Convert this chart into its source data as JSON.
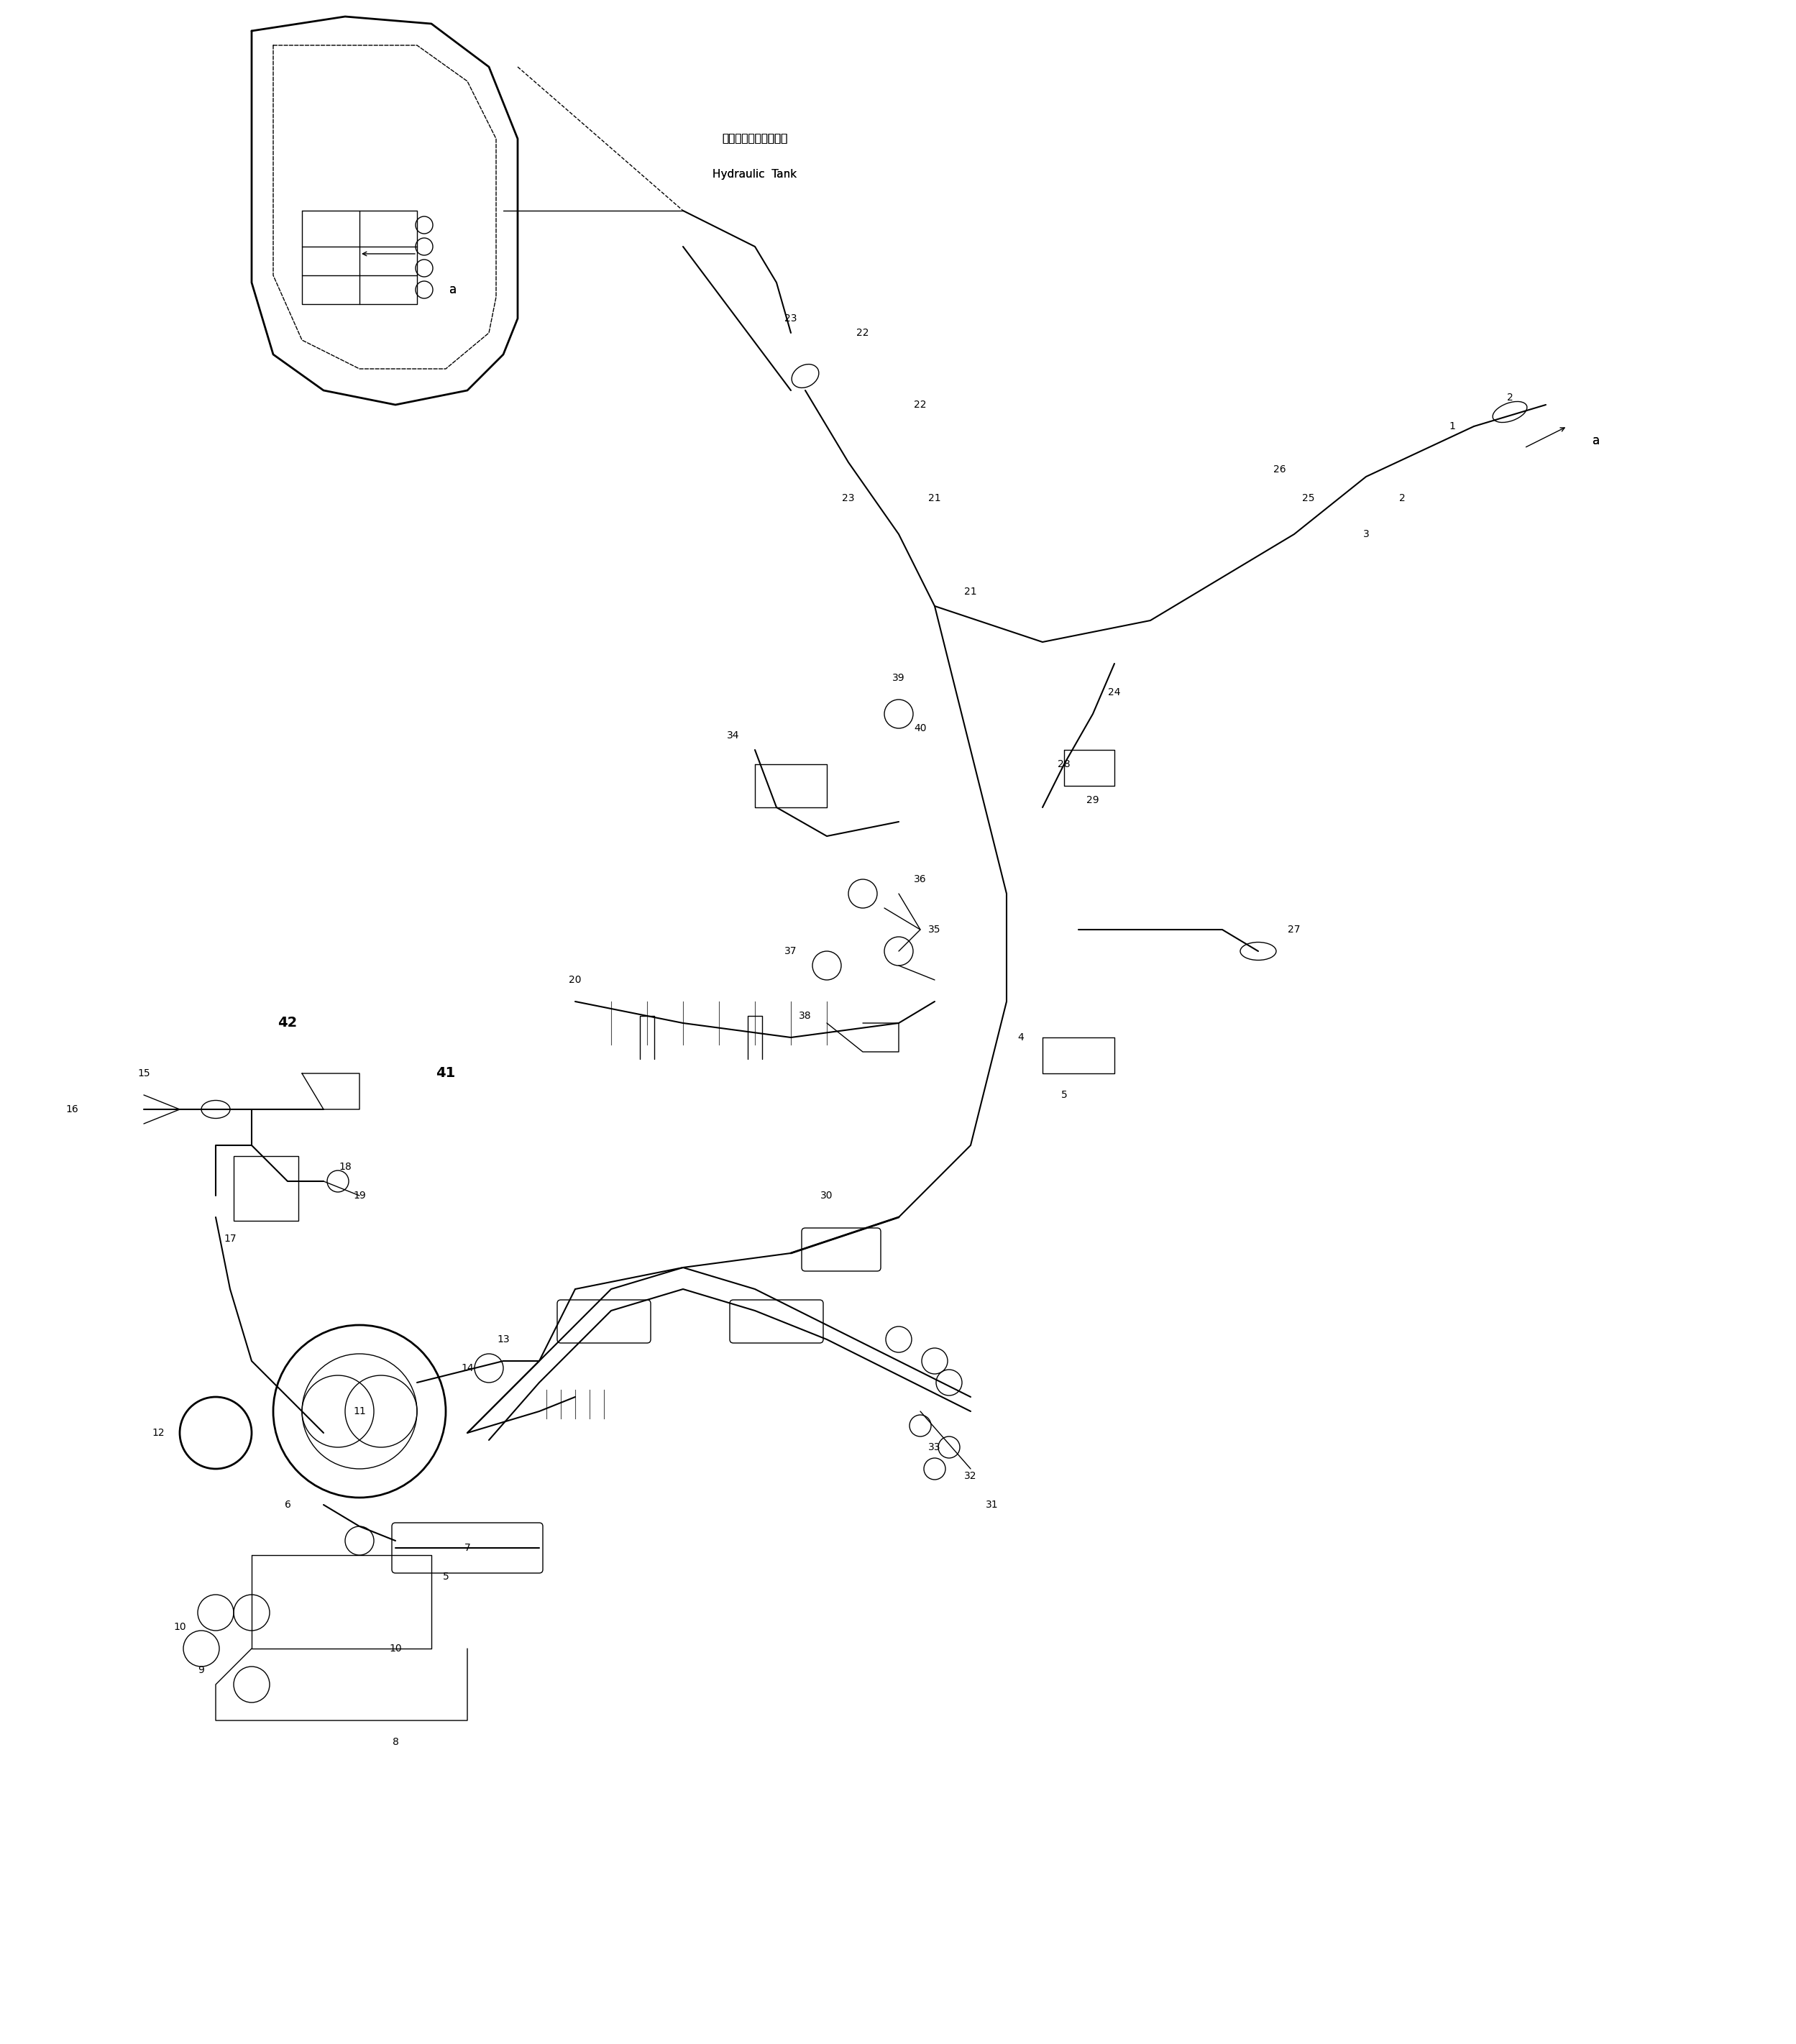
{
  "bg_color": "#ffffff",
  "line_color": "#000000",
  "fig_width": 24.98,
  "fig_height": 28.43,
  "hydraulic_tank_jp": "ハイドロリックタンク",
  "hydraulic_tank_en": "Hydraulic  Tank",
  "a_label": "a",
  "parts_positioned": [
    [
      "1",
      20.2,
      22.5,
      10,
      false
    ],
    [
      "2",
      21.0,
      22.9,
      10,
      false
    ],
    [
      "2",
      19.5,
      21.5,
      10,
      false
    ],
    [
      "3",
      19.0,
      21.0,
      10,
      false
    ],
    [
      "25",
      18.2,
      21.5,
      10,
      false
    ],
    [
      "26",
      17.8,
      21.9,
      10,
      false
    ],
    [
      "22",
      12.8,
      22.8,
      10,
      false
    ],
    [
      "23",
      11.8,
      21.5,
      10,
      false
    ],
    [
      "21",
      13.5,
      20.2,
      10,
      false
    ],
    [
      "24",
      15.5,
      18.8,
      10,
      false
    ],
    [
      "28",
      14.8,
      17.8,
      10,
      false
    ],
    [
      "29",
      15.2,
      17.3,
      10,
      false
    ],
    [
      "27",
      18.0,
      15.5,
      10,
      false
    ],
    [
      "4",
      14.2,
      14.0,
      10,
      false
    ],
    [
      "5",
      14.8,
      13.2,
      10,
      false
    ],
    [
      "34",
      10.2,
      18.2,
      10,
      false
    ],
    [
      "39",
      12.5,
      19.0,
      10,
      false
    ],
    [
      "40",
      12.8,
      18.3,
      10,
      false
    ],
    [
      "35",
      13.0,
      15.5,
      10,
      false
    ],
    [
      "36",
      12.8,
      16.2,
      10,
      false
    ],
    [
      "37",
      11.0,
      15.2,
      10,
      false
    ],
    [
      "38",
      11.2,
      14.3,
      10,
      false
    ],
    [
      "20",
      8.0,
      14.8,
      10,
      false
    ],
    [
      "41",
      6.2,
      13.5,
      14,
      true
    ],
    [
      "42",
      4.0,
      14.2,
      14,
      true
    ],
    [
      "15",
      2.0,
      13.5,
      10,
      false
    ],
    [
      "16",
      1.0,
      13.0,
      10,
      false
    ],
    [
      "17",
      3.2,
      11.2,
      10,
      false
    ],
    [
      "18",
      4.8,
      12.2,
      10,
      false
    ],
    [
      "19",
      5.0,
      11.8,
      10,
      false
    ],
    [
      "30",
      11.5,
      11.8,
      10,
      false
    ],
    [
      "31",
      13.8,
      7.5,
      10,
      false
    ],
    [
      "32",
      13.5,
      7.9,
      10,
      false
    ],
    [
      "33",
      13.0,
      8.3,
      10,
      false
    ],
    [
      "11",
      5.0,
      8.8,
      10,
      false
    ],
    [
      "12",
      2.2,
      8.5,
      10,
      false
    ],
    [
      "13",
      7.0,
      9.8,
      10,
      false
    ],
    [
      "14",
      6.5,
      9.4,
      10,
      false
    ],
    [
      "6",
      4.0,
      7.5,
      10,
      false
    ],
    [
      "7",
      6.5,
      6.9,
      10,
      false
    ],
    [
      "8",
      5.5,
      4.2,
      10,
      false
    ],
    [
      "9",
      2.8,
      5.2,
      10,
      false
    ],
    [
      "10",
      2.5,
      5.8,
      10,
      false
    ],
    [
      "10",
      5.5,
      5.5,
      10,
      false
    ],
    [
      "5",
      6.2,
      6.5,
      10,
      false
    ]
  ]
}
